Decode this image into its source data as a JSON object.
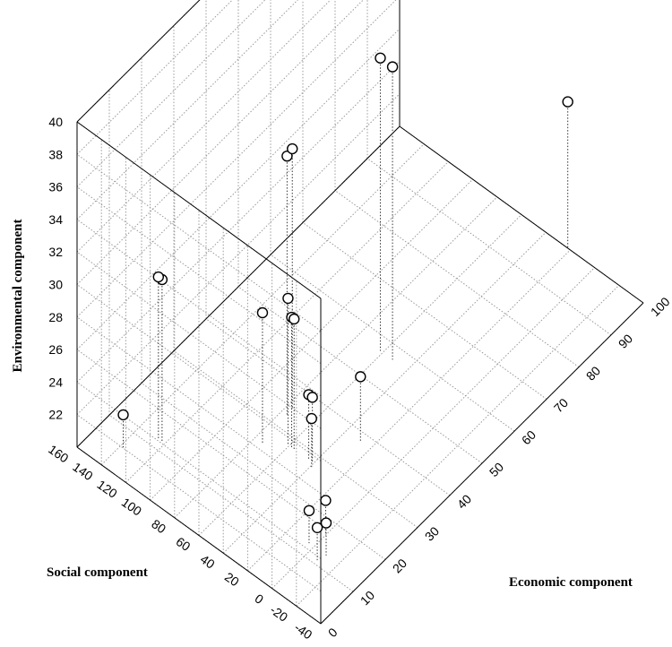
{
  "chart_data": {
    "type": "scatter",
    "title": "",
    "xlabel": "Economic component",
    "ylabel": "Social component",
    "zlabel": "Environmental component",
    "xlim": [
      0,
      100
    ],
    "ylim": [
      -40,
      160
    ],
    "zlim": [
      20,
      40
    ],
    "x_ticks": [
      "0",
      "10",
      "20",
      "30",
      "40",
      "50",
      "60",
      "70",
      "80",
      "90",
      "100"
    ],
    "y_ticks": [
      "-40",
      "-20",
      "0",
      "20",
      "40",
      "60",
      "80",
      "100",
      "120",
      "140",
      "160"
    ],
    "z_ticks": [
      "22",
      "24",
      "26",
      "28",
      "30",
      "32",
      "34",
      "36",
      "38",
      "40"
    ],
    "grid": true,
    "points": [
      {
        "x": 6,
        "y": 138,
        "z": 22
      },
      {
        "x": 12,
        "y": 122,
        "z": 30
      },
      {
        "x": 12,
        "y": 125,
        "z": 30
      },
      {
        "x": 25,
        "y": 74,
        "z": 28
      },
      {
        "x": 33,
        "y": 75,
        "z": 36
      },
      {
        "x": 35,
        "y": 76,
        "z": 36
      },
      {
        "x": 28,
        "y": 61,
        "z": 29
      },
      {
        "x": 28,
        "y": 58,
        "z": 28
      },
      {
        "x": 28,
        "y": 56,
        "z": 28
      },
      {
        "x": 28,
        "y": 44,
        "z": 24
      },
      {
        "x": 28,
        "y": 41,
        "z": 24
      },
      {
        "x": 27,
        "y": 39,
        "z": 23
      },
      {
        "x": 38,
        "y": 28,
        "z": 24
      },
      {
        "x": 57,
        "y": 62,
        "z": 38
      },
      {
        "x": 57,
        "y": 52,
        "z": 38
      },
      {
        "x": 13,
        "y": 4,
        "z": 22
      },
      {
        "x": 17,
        "y": 1,
        "z": 22
      },
      {
        "x": 11,
        "y": -8,
        "z": 22
      },
      {
        "x": 13,
        "y": -10,
        "z": 22
      },
      {
        "x": 100,
        "y": 22,
        "z": 29
      }
    ]
  }
}
